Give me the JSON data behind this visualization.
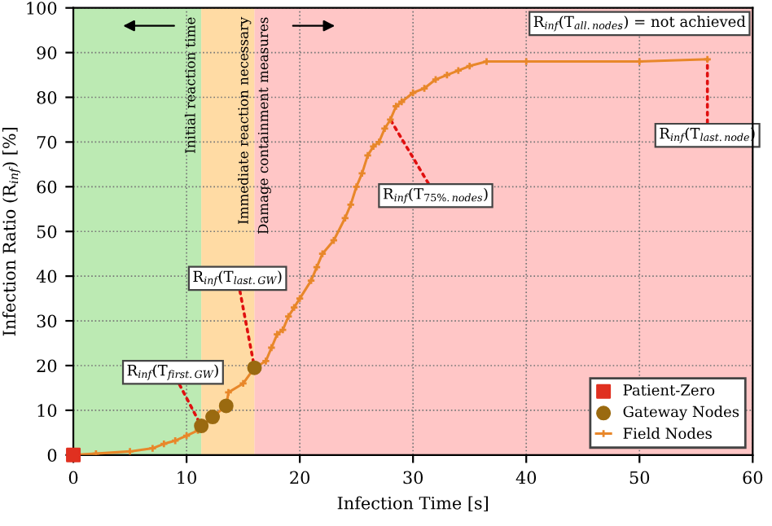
{
  "chart_data": {
    "type": "line",
    "xlabel": "Infection Time [s]",
    "ylabel": "Infection Ratio (R$_{inf}$) [%]",
    "xlim": [
      0,
      60
    ],
    "ylim": [
      0,
      100
    ],
    "xticks": [
      0,
      10,
      20,
      30,
      40,
      50,
      60
    ],
    "yticks": [
      0,
      10,
      20,
      30,
      40,
      50,
      60,
      70,
      80,
      90,
      100
    ],
    "grid": true,
    "legend": "bottom right",
    "series": [
      {
        "name": "Field Nodes",
        "color": "#e8872a",
        "marker": "cross",
        "x": [
          0,
          2,
          5,
          7,
          8,
          9,
          10,
          11,
          11.3,
          12.3,
          13.5,
          13.7,
          15,
          16,
          17,
          17.5,
          18,
          18.5,
          19,
          19.5,
          20,
          21,
          21.5,
          22,
          23,
          24,
          24.5,
          25,
          25.5,
          26,
          26.5,
          27,
          27.5,
          28,
          28.5,
          29,
          30,
          31,
          32,
          33,
          34,
          35,
          36.5,
          40,
          50,
          56
        ],
        "values": [
          0,
          0.3,
          0.8,
          1.5,
          2.5,
          3.2,
          4.3,
          5.5,
          6.5,
          8.5,
          11,
          14,
          16,
          19.5,
          21,
          24,
          27,
          28,
          31,
          33,
          35,
          39,
          42,
          45,
          48,
          53,
          56,
          60,
          63,
          67,
          69,
          70,
          73,
          75,
          78,
          79,
          81,
          82,
          84,
          85,
          86,
          87,
          88,
          88,
          88,
          88.5
        ]
      },
      {
        "name": "Gateway Nodes",
        "type": "scatter",
        "color": "#9a6a10",
        "marker": "circle",
        "x": [
          11.3,
          12.3,
          13.5,
          16
        ],
        "values": [
          6.5,
          8.5,
          11,
          19.5
        ]
      },
      {
        "name": "Patient-Zero",
        "type": "scatter",
        "color": "#e03020",
        "marker": "square",
        "x": [
          0
        ],
        "values": [
          0
        ]
      }
    ],
    "bands": [
      {
        "axis": "x",
        "from": 0,
        "to": 11.3,
        "label": "Initial reaction time",
        "color": "#a6e39a"
      },
      {
        "axis": "x",
        "from": 11.3,
        "to": 16,
        "label": "Immediate reaction necessary",
        "color": "#ffcf85"
      },
      {
        "axis": "x",
        "from": 16,
        "to": 60,
        "label": "Damage containment measures",
        "color": "#ffb3b3"
      }
    ],
    "annotations": [
      {
        "text": "R$_{inf}$(T$_{first.GW}$)",
        "x": 11.3,
        "y": 6.5
      },
      {
        "text": "R$_{inf}$(T$_{last.GW}$)",
        "x": 16,
        "y": 19.5
      },
      {
        "text": "R$_{inf}$(T$_{75%.nodes}$)",
        "x": 28,
        "y": 75
      },
      {
        "text": "R$_{inf}$(T$_{last.node}$)",
        "x": 56,
        "y": 88.5
      },
      "R$_{inf}$(T$_{all.nodes}$) = not achieved"
    ]
  }
}
